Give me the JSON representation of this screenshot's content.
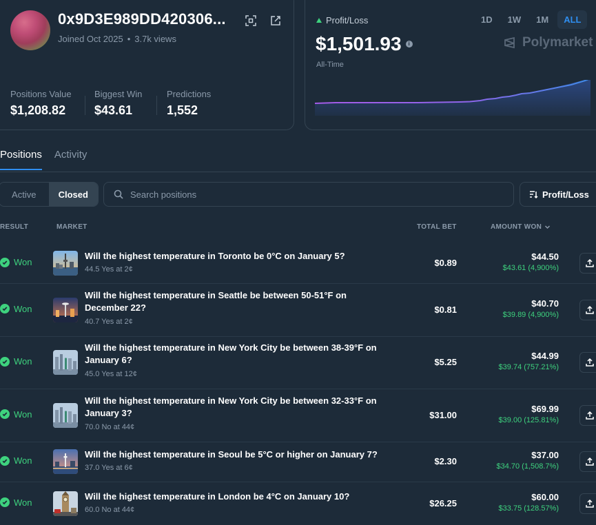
{
  "profile": {
    "username": "0x9D3E989DD420306...",
    "joined": "Joined Oct 2025",
    "views": "3.7k views",
    "stats": [
      {
        "label": "Positions Value",
        "value": "$1,208.82"
      },
      {
        "label": "Biggest Win",
        "value": "$43.61"
      },
      {
        "label": "Predictions",
        "value": "1,552"
      }
    ]
  },
  "pnl": {
    "label": "Profit/Loss",
    "value": "$1,501.93",
    "period": "All-Time",
    "ranges": [
      "1D",
      "1W",
      "1M",
      "ALL"
    ],
    "active_range": "ALL",
    "brand": "Polymarket",
    "trend_color": "#3ed27e",
    "chart_line_colors": [
      "#a55be8",
      "#3e8be8"
    ]
  },
  "tabs": [
    "Positions",
    "Activity"
  ],
  "filters": {
    "active": "Active",
    "closed": "Closed",
    "selected": "Closed"
  },
  "search": {
    "placeholder": "Search positions"
  },
  "sort": {
    "label": "Profit/Loss"
  },
  "table": {
    "headers": {
      "result": "RESULT",
      "market": "MARKET",
      "total_bet": "TOTAL BET",
      "amount_won": "AMOUNT WON"
    },
    "rows": [
      {
        "result": "Won",
        "question": "Will the highest temperature in Toronto be 0°C on January 5?",
        "detail": "44.5 Yes at 2¢",
        "total_bet": "$0.89",
        "amount": "$44.50",
        "gain": "$43.61 (4,900%)",
        "thumb": "toronto-skyline"
      },
      {
        "result": "Won",
        "question": "Will the highest temperature in Seattle be between 50-51°F on December 22?",
        "detail": "40.7 Yes at 2¢",
        "total_bet": "$0.81",
        "amount": "$40.70",
        "gain": "$39.89 (4,900%)",
        "thumb": "seattle-skyline"
      },
      {
        "result": "Won",
        "question": "Will the highest temperature in New York City be between 38-39°F on January 6?",
        "detail": "45.0 Yes at 12¢",
        "total_bet": "$5.25",
        "amount": "$44.99",
        "gain": "$39.74 (757.21%)",
        "thumb": "nyc-skyline"
      },
      {
        "result": "Won",
        "question": "Will the highest temperature in New York City be between 32-33°F on January 3?",
        "detail": "70.0 No at 44¢",
        "total_bet": "$31.00",
        "amount": "$69.99",
        "gain": "$39.00 (125.81%)",
        "thumb": "nyc-skyline"
      },
      {
        "result": "Won",
        "question": "Will the highest temperature in Seoul be 5°C or higher on January 7?",
        "detail": "37.0 Yes at 6¢",
        "total_bet": "$2.30",
        "amount": "$37.00",
        "gain": "$34.70 (1,508.7%)",
        "thumb": "seoul-skyline"
      },
      {
        "result": "Won",
        "question": "Will the highest temperature in London be 4°C on January 10?",
        "detail": "60.0 No at 44¢",
        "total_bet": "$26.25",
        "amount": "$60.00",
        "gain": "$33.75 (128.57%)",
        "thumb": "london-big-ben"
      }
    ]
  }
}
